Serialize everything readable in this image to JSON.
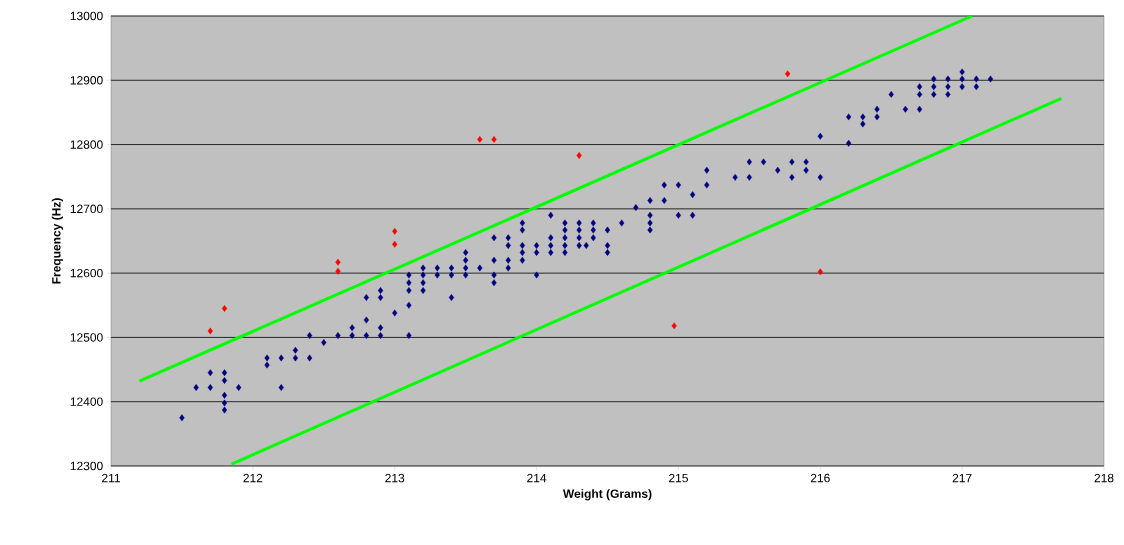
{
  "chart_data": {
    "type": "scatter",
    "xlabel": "Weight (Grams)",
    "ylabel": "Frequency (Hz)",
    "xlim": [
      211,
      218
    ],
    "xticks": [
      211,
      212,
      213,
      214,
      215,
      216,
      217,
      218
    ],
    "ylim": [
      12300,
      13000
    ],
    "yticks": [
      12300,
      12400,
      12500,
      12600,
      12700,
      12800,
      12900,
      13000
    ],
    "grid": "y",
    "series": [
      {
        "marker": "diamond",
        "color": "#000080",
        "x": [
          211.5,
          211.6,
          211.7,
          211.7,
          211.8,
          211.8,
          211.8,
          211.8,
          211.8,
          211.9,
          212.1,
          212.1,
          212.2,
          212.2,
          212.3,
          212.3,
          212.4,
          212.4,
          212.5,
          212.6,
          212.7,
          212.7,
          212.8,
          212.8,
          212.8,
          212.9,
          212.9,
          212.9,
          212.9,
          213.0,
          213.1,
          213.1,
          213.1,
          213.1,
          213.1,
          213.2,
          213.2,
          213.2,
          213.2,
          213.3,
          213.3,
          213.4,
          213.4,
          213.4,
          213.5,
          213.5,
          213.5,
          213.5,
          213.6,
          213.7,
          213.7,
          213.7,
          213.7,
          213.8,
          213.8,
          213.8,
          213.8,
          213.9,
          213.9,
          213.9,
          213.9,
          213.9,
          214.0,
          214.0,
          214.0,
          214.1,
          214.1,
          214.1,
          214.1,
          214.2,
          214.2,
          214.2,
          214.2,
          214.2,
          214.3,
          214.3,
          214.3,
          214.3,
          214.35,
          214.4,
          214.4,
          214.4,
          214.5,
          214.5,
          214.5,
          214.6,
          214.7,
          214.8,
          214.8,
          214.8,
          214.8,
          214.9,
          214.9,
          215.0,
          215.0,
          215.1,
          215.1,
          215.2,
          215.2,
          215.4,
          215.5,
          215.5,
          215.6,
          215.7,
          215.8,
          215.8,
          215.9,
          215.9,
          216.0,
          216.0,
          216.2,
          216.2,
          216.3,
          216.3,
          216.4,
          216.4,
          216.5,
          216.6,
          216.7,
          216.7,
          216.7,
          216.8,
          216.8,
          216.8,
          216.9,
          216.9,
          216.9,
          217.0,
          217.0,
          217.0,
          217.1,
          217.1,
          217.2
        ],
        "values": [
          12375,
          12422,
          12445,
          12422,
          12445,
          12433,
          12410,
          12398,
          12387,
          12422,
          12468,
          12457,
          12468,
          12422,
          12480,
          12468,
          12503,
          12468,
          12492,
          12503,
          12515,
          12503,
          12562,
          12527,
          12503,
          12573,
          12562,
          12515,
          12503,
          12538,
          12597,
          12585,
          12573,
          12550,
          12503,
          12608,
          12597,
          12585,
          12573,
          12608,
          12597,
          12608,
          12597,
          12562,
          12632,
          12620,
          12608,
          12597,
          12608,
          12655,
          12620,
          12597,
          12585,
          12655,
          12643,
          12620,
          12608,
          12678,
          12667,
          12643,
          12632,
          12620,
          12643,
          12632,
          12597,
          12690,
          12655,
          12643,
          12632,
          12678,
          12667,
          12655,
          12643,
          12632,
          12678,
          12667,
          12655,
          12643,
          12643,
          12678,
          12667,
          12655,
          12667,
          12643,
          12632,
          12678,
          12702,
          12713,
          12690,
          12678,
          12667,
          12737,
          12713,
          12737,
          12690,
          12722,
          12690,
          12760,
          12737,
          12749,
          12773,
          12749,
          12773,
          12760,
          12773,
          12749,
          12773,
          12760,
          12813,
          12749,
          12843,
          12802,
          12843,
          12832,
          12855,
          12843,
          12878,
          12855,
          12890,
          12878,
          12855,
          12902,
          12890,
          12878,
          12902,
          12890,
          12878,
          12913,
          12902,
          12890,
          12902,
          12890,
          12902
        ]
      },
      {
        "marker": "diamond",
        "color": "#ff0000",
        "x": [
          211.7,
          211.8,
          212.6,
          212.6,
          213.0,
          213.0,
          213.6,
          213.7,
          214.3,
          214.97,
          215.77,
          216.0
        ],
        "values": [
          12510,
          12545,
          12617,
          12603,
          12665,
          12645,
          12808,
          12808,
          12783,
          12518,
          12910,
          12602
        ]
      },
      {
        "type": "line",
        "marker": "none",
        "color": "#00ff00",
        "x": [
          211.2,
          217.07
        ],
        "values": [
          12432,
          13000
        ]
      },
      {
        "type": "line",
        "marker": "none",
        "color": "#00ff00",
        "x": [
          211.85,
          217.7
        ],
        "values": [
          12303,
          12872
        ]
      }
    ]
  }
}
